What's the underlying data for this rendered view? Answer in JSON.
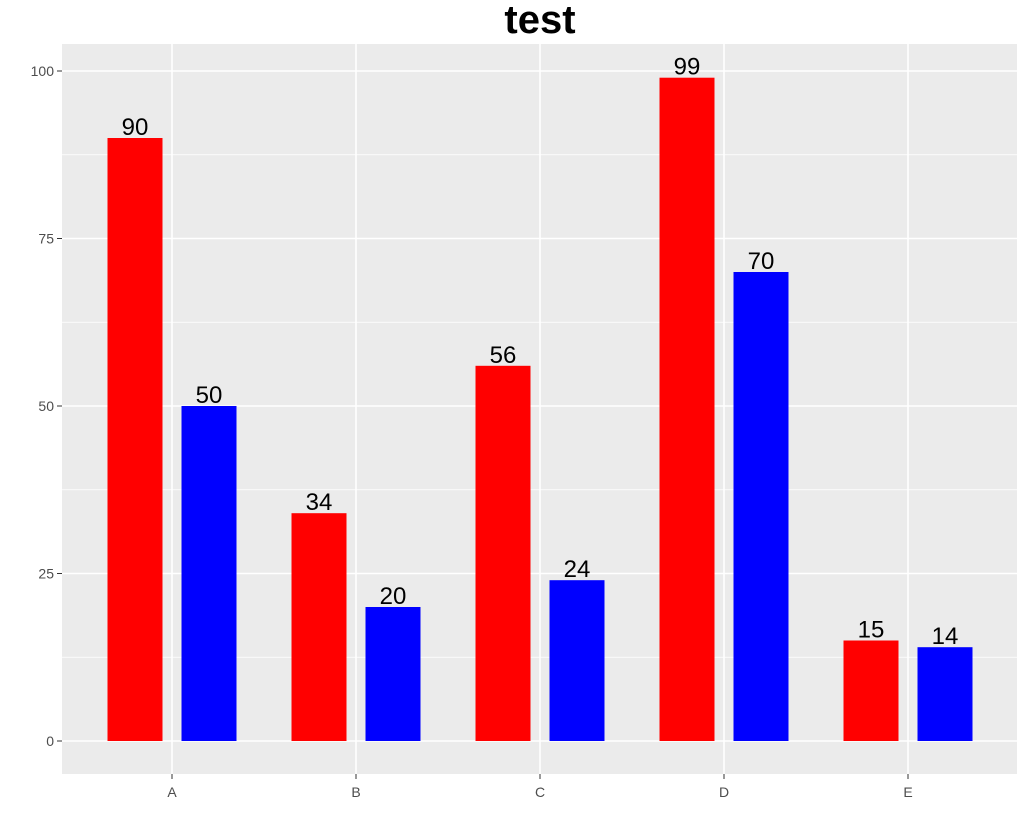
{
  "chart_data": {
    "type": "bar",
    "title": "test",
    "xlabel": "",
    "ylabel": "",
    "categories": [
      "A",
      "B",
      "C",
      "D",
      "E"
    ],
    "series": [
      {
        "color": "#ff0000",
        "values": [
          90,
          34,
          56,
          99,
          15
        ]
      },
      {
        "color": "#0000ff",
        "values": [
          50,
          20,
          24,
          70,
          14
        ]
      }
    ],
    "y_ticks": [
      0,
      25,
      50,
      75,
      100
    ],
    "ylim": [
      -4,
      104
    ],
    "grid": true,
    "legend": "none",
    "data_labels": true
  },
  "colors": {
    "panel_background": "#ebebeb",
    "grid_major": "#ffffff",
    "tick_text": "#4d4d4d"
  }
}
